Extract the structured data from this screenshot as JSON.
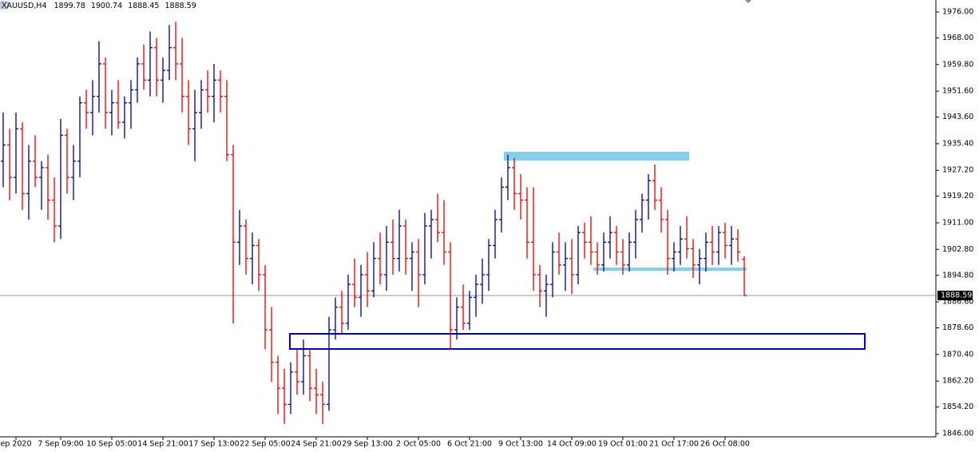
{
  "chart_data": {
    "type": "ohlc",
    "symbol": "XAUUSD,H4",
    "header_ohlc": [
      1899.78,
      1900.74,
      1888.45,
      1888.59
    ],
    "last_price": 1888.59,
    "up_color": "#000080",
    "down_color": "#e00000",
    "ylim": [
      1845.0,
      1979.7
    ],
    "yticks": [
      {
        "value": 1976,
        "label": "1976.00"
      },
      {
        "value": 1968,
        "label": "1968.00"
      },
      {
        "value": 1959.8,
        "label": "1959.80"
      },
      {
        "value": 1951.6,
        "label": "1951.60"
      },
      {
        "value": 1943.6,
        "label": "1943.60"
      },
      {
        "value": 1935.4,
        "label": "1935.40"
      },
      {
        "value": 1927.2,
        "label": "1927.20"
      },
      {
        "value": 1919.2,
        "label": "1919.20"
      },
      {
        "value": 1911,
        "label": "1911.00"
      },
      {
        "value": 1902.8,
        "label": "1902.80"
      },
      {
        "value": 1894.8,
        "label": "1894.80"
      },
      {
        "value": 1886.6,
        "label": "1886.60"
      },
      {
        "value": 1878.6,
        "label": "1878.60"
      },
      {
        "value": 1870.4,
        "label": "1870.40"
      },
      {
        "value": 1862.2,
        "label": "1862.20"
      },
      {
        "value": 1854.2,
        "label": "1854.20"
      },
      {
        "value": 1846,
        "label": "1846.00"
      }
    ],
    "categories": [
      null,
      null,
      "ep 2020",
      null,
      null,
      null,
      null,
      null,
      null,
      "7 Sep 09:00",
      null,
      null,
      null,
      null,
      null,
      null,
      null,
      "10 Sep 05:00",
      null,
      null,
      null,
      null,
      null,
      null,
      null,
      "14 Sep 21:00",
      null,
      null,
      null,
      null,
      null,
      null,
      null,
      "17 Sep 13:00",
      null,
      null,
      null,
      null,
      null,
      null,
      null,
      "22 Sep 05:00",
      null,
      null,
      null,
      null,
      null,
      null,
      null,
      "24 Sep 21:00",
      null,
      null,
      null,
      null,
      null,
      null,
      null,
      "29 Sep 13:00",
      null,
      null,
      null,
      null,
      null,
      null,
      null,
      "2 Oct 05:00",
      null,
      null,
      null,
      null,
      null,
      null,
      null,
      "6 Oct 21:00",
      null,
      null,
      null,
      null,
      null,
      null,
      null,
      "9 Oct 13:00",
      null,
      null,
      null,
      null,
      null,
      null,
      null,
      "14 Oct 09:00",
      null,
      null,
      null,
      null,
      null,
      null,
      null,
      "19 Oct 01:00",
      null,
      null,
      null,
      null,
      null,
      null,
      null,
      "21 Oct 17:00",
      null,
      null,
      null,
      null,
      null,
      null,
      null,
      "26 Oct 08:00",
      null,
      null,
      null
    ],
    "ohlc": [
      [
        1930,
        1945,
        1922,
        1935
      ],
      [
        1935,
        1940,
        1918,
        1925
      ],
      [
        1925,
        1945,
        1920,
        1940
      ],
      [
        1940,
        1942,
        1915,
        1920
      ],
      [
        1920,
        1935,
        1912,
        1930
      ],
      [
        1930,
        1938,
        1922,
        1925
      ],
      [
        1925,
        1930,
        1915,
        1928
      ],
      [
        1928,
        1932,
        1912,
        1918
      ],
      [
        1918,
        1925,
        1905,
        1910
      ],
      [
        1910,
        1943,
        1906,
        1938
      ],
      [
        1938,
        1940,
        1920,
        1925
      ],
      [
        1925,
        1935,
        1918,
        1930
      ],
      [
        1930,
        1950,
        1925,
        1948
      ],
      [
        1948,
        1952,
        1940,
        1945
      ],
      [
        1945,
        1955,
        1938,
        1950
      ],
      [
        1950,
        1967,
        1945,
        1960
      ],
      [
        1960,
        1962,
        1940,
        1945
      ],
      [
        1945,
        1952,
        1938,
        1948
      ],
      [
        1948,
        1955,
        1940,
        1942
      ],
      [
        1942,
        1950,
        1937,
        1948
      ],
      [
        1948,
        1955,
        1940,
        1952
      ],
      [
        1952,
        1962,
        1948,
        1960
      ],
      [
        1960,
        1966,
        1952,
        1955
      ],
      [
        1955,
        1970,
        1950,
        1965
      ],
      [
        1965,
        1968,
        1950,
        1955
      ],
      [
        1955,
        1962,
        1948,
        1958
      ],
      [
        1958,
        1972,
        1955,
        1965
      ],
      [
        1965,
        1973,
        1955,
        1960
      ],
      [
        1960,
        1968,
        1945,
        1950
      ],
      [
        1950,
        1955,
        1935,
        1940
      ],
      [
        1940,
        1952,
        1930,
        1945
      ],
      [
        1945,
        1955,
        1940,
        1952
      ],
      [
        1952,
        1958,
        1945,
        1950
      ],
      [
        1950,
        1960,
        1942,
        1955
      ],
      [
        1955,
        1958,
        1945,
        1950
      ],
      [
        1950,
        1955,
        1930,
        1932
      ],
      [
        1932,
        1935,
        1880,
        1905
      ],
      [
        1905,
        1915,
        1898,
        1910
      ],
      [
        1910,
        1912,
        1895,
        1900
      ],
      [
        1900,
        1908,
        1892,
        1904
      ],
      [
        1904,
        1906,
        1890,
        1895
      ],
      [
        1895,
        1898,
        1872,
        1878
      ],
      [
        1878,
        1885,
        1862,
        1868
      ],
      [
        1868,
        1870,
        1852,
        1860
      ],
      [
        1860,
        1866,
        1849,
        1855
      ],
      [
        1855,
        1868,
        1852,
        1865
      ],
      [
        1865,
        1872,
        1858,
        1862
      ],
      [
        1862,
        1875,
        1858,
        1870
      ],
      [
        1870,
        1872,
        1856,
        1860
      ],
      [
        1860,
        1866,
        1852,
        1858
      ],
      [
        1858,
        1862,
        1849,
        1855
      ],
      [
        1855,
        1882,
        1853,
        1878
      ],
      [
        1878,
        1888,
        1875,
        1885
      ],
      [
        1885,
        1890,
        1877,
        1880
      ],
      [
        1880,
        1895,
        1878,
        1892
      ],
      [
        1892,
        1900,
        1885,
        1888
      ],
      [
        1888,
        1898,
        1882,
        1895
      ],
      [
        1895,
        1902,
        1885,
        1890
      ],
      [
        1890,
        1905,
        1888,
        1900
      ],
      [
        1900,
        1908,
        1892,
        1895
      ],
      [
        1895,
        1910,
        1890,
        1905
      ],
      [
        1905,
        1912,
        1895,
        1900
      ],
      [
        1900,
        1915,
        1896,
        1910
      ],
      [
        1910,
        1912,
        1895,
        1900
      ],
      [
        1900,
        1905,
        1890,
        1902
      ],
      [
        1902,
        1906,
        1885,
        1895
      ],
      [
        1895,
        1914,
        1892,
        1910
      ],
      [
        1910,
        1915,
        1900,
        1912
      ],
      [
        1912,
        1920,
        1905,
        1908
      ],
      [
        1908,
        1918,
        1898,
        1902
      ],
      [
        1902,
        1905,
        1872,
        1878
      ],
      [
        1878,
        1888,
        1875,
        1885
      ],
      [
        1885,
        1892,
        1878,
        1880
      ],
      [
        1880,
        1890,
        1878,
        1888
      ],
      [
        1888,
        1895,
        1882,
        1892
      ],
      [
        1892,
        1900,
        1886,
        1895
      ],
      [
        1895,
        1906,
        1890,
        1904
      ],
      [
        1904,
        1915,
        1900,
        1912
      ],
      [
        1912,
        1925,
        1908,
        1922
      ],
      [
        1922,
        1932,
        1918,
        1928
      ],
      [
        1928,
        1931,
        1915,
        1920
      ],
      [
        1920,
        1926,
        1912,
        1918
      ],
      [
        1918,
        1922,
        1900,
        1905
      ],
      [
        1905,
        1922,
        1890,
        1895
      ],
      [
        1895,
        1898,
        1885,
        1890
      ],
      [
        1890,
        1895,
        1882,
        1892
      ],
      [
        1892,
        1905,
        1888,
        1902
      ],
      [
        1902,
        1908,
        1895,
        1898
      ],
      [
        1898,
        1905,
        1890,
        1900
      ],
      [
        1900,
        1906,
        1889,
        1895
      ],
      [
        1895,
        1910,
        1892,
        1908
      ],
      [
        1908,
        1911,
        1900,
        1905
      ],
      [
        1905,
        1913,
        1898,
        1902
      ],
      [
        1902,
        1905,
        1895,
        1898
      ],
      [
        1898,
        1908,
        1896,
        1905
      ],
      [
        1905,
        1913,
        1900,
        1908
      ],
      [
        1908,
        1910,
        1898,
        1902
      ],
      [
        1902,
        1906,
        1895,
        1898
      ],
      [
        1898,
        1908,
        1896,
        1905
      ],
      [
        1905,
        1915,
        1900,
        1912
      ],
      [
        1912,
        1920,
        1908,
        1918
      ],
      [
        1918,
        1926,
        1912,
        1924
      ],
      [
        1924,
        1929,
        1915,
        1918
      ],
      [
        1918,
        1922,
        1908,
        1912
      ],
      [
        1912,
        1915,
        1895,
        1900
      ],
      [
        1900,
        1905,
        1896,
        1902
      ],
      [
        1902,
        1910,
        1898,
        1906
      ],
      [
        1906,
        1913,
        1900,
        1903
      ],
      [
        1903,
        1906,
        1894,
        1898
      ],
      [
        1898,
        1903,
        1892,
        1900
      ],
      [
        1900,
        1908,
        1896,
        1905
      ],
      [
        1905,
        1910,
        1898,
        1902
      ],
      [
        1902,
        1910,
        1898,
        1908
      ],
      [
        1908,
        1911,
        1900,
        1904
      ],
      [
        1904,
        1910,
        1898,
        1906
      ],
      [
        1906,
        1909,
        1899,
        1902
      ],
      [
        1899.78,
        1900.74,
        1888.45,
        1888.59
      ]
    ]
  }
}
